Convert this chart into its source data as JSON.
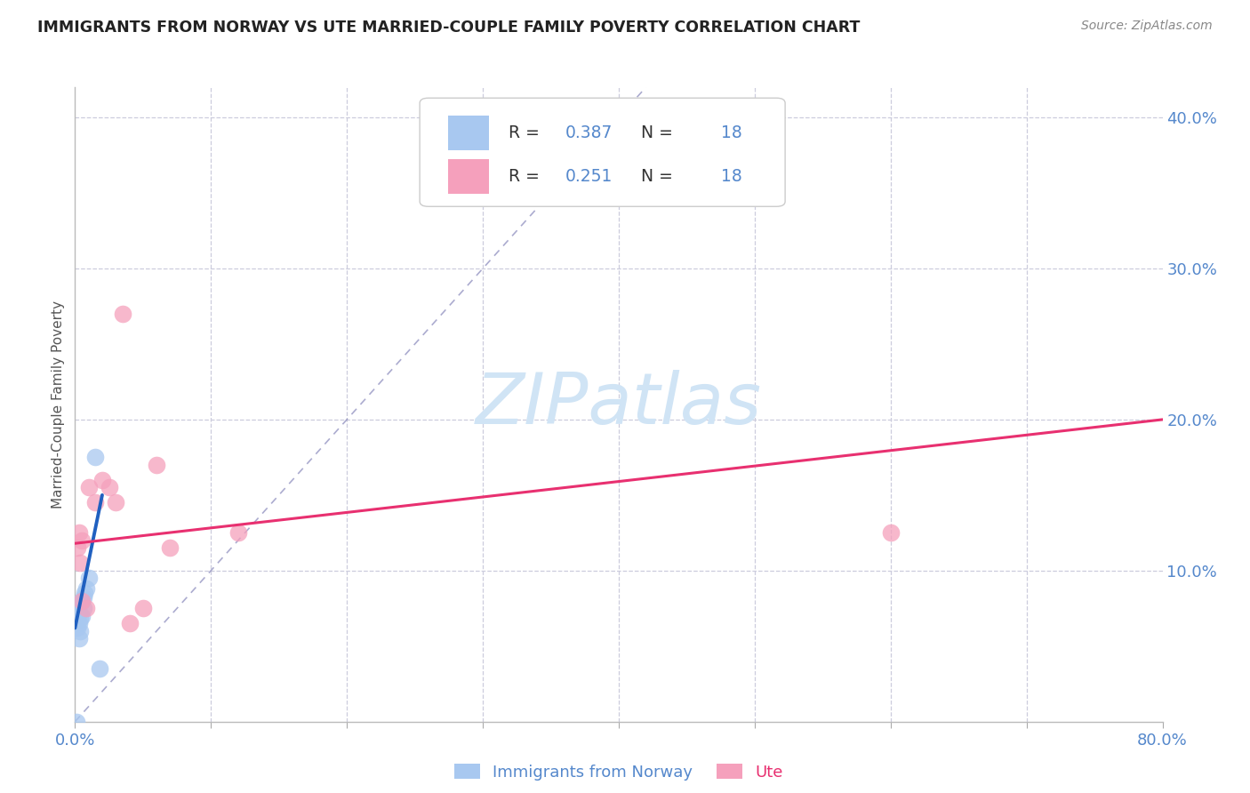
{
  "title": "IMMIGRANTS FROM NORWAY VS UTE MARRIED-COUPLE FAMILY POVERTY CORRELATION CHART",
  "source": "Source: ZipAtlas.com",
  "ylabel": "Married-Couple Family Poverty",
  "xlim": [
    0,
    0.8
  ],
  "ylim": [
    0,
    0.42
  ],
  "xticks": [
    0.0,
    0.1,
    0.2,
    0.3,
    0.4,
    0.5,
    0.6,
    0.7,
    0.8
  ],
  "xticklabels": [
    "0.0%",
    "",
    "",
    "",
    "",
    "",
    "",
    "",
    "80.0%"
  ],
  "yticks_right": [
    0.1,
    0.2,
    0.3,
    0.4
  ],
  "yticklabels_right": [
    "10.0%",
    "20.0%",
    "30.0%",
    "40.0%"
  ],
  "legend_label1": "Immigrants from Norway",
  "legend_label2": "Ute",
  "R1": 0.387,
  "N1": 18,
  "R2": 0.251,
  "N2": 18,
  "norway_scatter_x": [
    0.001,
    0.002,
    0.002,
    0.002,
    0.003,
    0.003,
    0.003,
    0.004,
    0.004,
    0.005,
    0.005,
    0.006,
    0.006,
    0.007,
    0.008,
    0.01,
    0.015,
    0.018
  ],
  "norway_scatter_y": [
    0.0,
    0.062,
    0.07,
    0.078,
    0.055,
    0.065,
    0.072,
    0.06,
    0.068,
    0.07,
    0.08,
    0.075,
    0.082,
    0.085,
    0.088,
    0.095,
    0.175,
    0.035
  ],
  "ute_scatter_x": [
    0.002,
    0.003,
    0.004,
    0.005,
    0.005,
    0.008,
    0.01,
    0.015,
    0.02,
    0.025,
    0.03,
    0.035,
    0.04,
    0.05,
    0.06,
    0.07,
    0.12,
    0.6
  ],
  "ute_scatter_y": [
    0.115,
    0.125,
    0.105,
    0.08,
    0.12,
    0.075,
    0.155,
    0.145,
    0.16,
    0.155,
    0.145,
    0.27,
    0.065,
    0.075,
    0.17,
    0.115,
    0.125,
    0.125
  ],
  "norway_line_x": [
    0.0,
    0.02
  ],
  "norway_line_y": [
    0.062,
    0.15
  ],
  "ute_line_x": [
    0.0,
    0.8
  ],
  "ute_line_y": [
    0.118,
    0.2
  ],
  "diag_line_x": [
    0.0,
    0.42
  ],
  "diag_line_y": [
    0.0,
    0.42
  ],
  "norway_color": "#A8C8F0",
  "ute_color": "#F5A0BC",
  "norway_line_color": "#2060C0",
  "ute_line_color": "#E83070",
  "diag_line_color": "#8888BB",
  "background_color": "#FFFFFF",
  "grid_color": "#CCCCDD",
  "tick_color": "#5588CC",
  "watermark_color": "#D0E4F5"
}
